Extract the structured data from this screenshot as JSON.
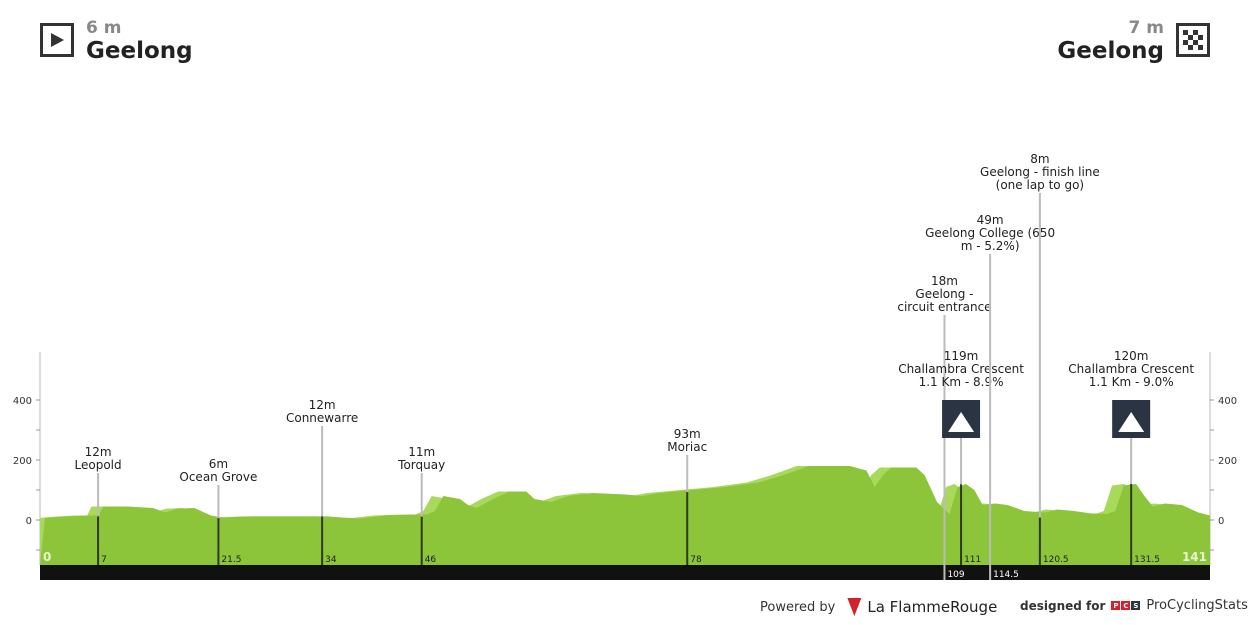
{
  "header": {
    "start": {
      "altitude": "6 m",
      "name": "Geelong",
      "icon": "play-start-icon"
    },
    "finish": {
      "altitude": "7 m",
      "name": "Geelong",
      "icon": "checkered-flag-icon"
    }
  },
  "chart_data": {
    "type": "area",
    "xlim": [
      0,
      141
    ],
    "ylim": [
      -150,
      560
    ],
    "yticks": [
      0,
      200,
      400
    ],
    "start_km_label": "0",
    "end_km_label": "141",
    "colors": {
      "profile": "#8cc43a",
      "profile_light": "#a8d95a",
      "bar": "#111111",
      "marker": "#bbbbbb",
      "kom_badge": "#2b3442"
    },
    "profile": [
      [
        0,
        7
      ],
      [
        3,
        12
      ],
      [
        5,
        15
      ],
      [
        6.5,
        15
      ],
      [
        7,
        45
      ],
      [
        10,
        45
      ],
      [
        13,
        40
      ],
      [
        14.5,
        25
      ],
      [
        16,
        38
      ],
      [
        18,
        40
      ],
      [
        20,
        15
      ],
      [
        21.5,
        8
      ],
      [
        25,
        12
      ],
      [
        30,
        12
      ],
      [
        34,
        12
      ],
      [
        36,
        8
      ],
      [
        38,
        5
      ],
      [
        41,
        15
      ],
      [
        44,
        18
      ],
      [
        46,
        18
      ],
      [
        47,
        30
      ],
      [
        48,
        80
      ],
      [
        50,
        70
      ],
      [
        51,
        50
      ],
      [
        52,
        40
      ],
      [
        54,
        70
      ],
      [
        56,
        95
      ],
      [
        58,
        95
      ],
      [
        59,
        70
      ],
      [
        61,
        60
      ],
      [
        63,
        80
      ],
      [
        66,
        90
      ],
      [
        70,
        85
      ],
      [
        72,
        80
      ],
      [
        74,
        90
      ],
      [
        76,
        95
      ],
      [
        78,
        100
      ],
      [
        82,
        110
      ],
      [
        86,
        125
      ],
      [
        89,
        150
      ],
      [
        92,
        180
      ],
      [
        97,
        180
      ],
      [
        99,
        165
      ],
      [
        100,
        110
      ],
      [
        101,
        150
      ],
      [
        102,
        175
      ],
      [
        105,
        175
      ],
      [
        106,
        150
      ],
      [
        107.5,
        60
      ],
      [
        109,
        20
      ],
      [
        110,
        110
      ],
      [
        111,
        120
      ],
      [
        112,
        100
      ],
      [
        113,
        50
      ],
      [
        114.5,
        55
      ],
      [
        116,
        50
      ],
      [
        118,
        30
      ],
      [
        120.5,
        25
      ],
      [
        122,
        35
      ],
      [
        124,
        30
      ],
      [
        126,
        22
      ],
      [
        128,
        20
      ],
      [
        129,
        30
      ],
      [
        130,
        115
      ],
      [
        131.5,
        120
      ],
      [
        132.5,
        80
      ],
      [
        133.5,
        45
      ],
      [
        135,
        55
      ],
      [
        137,
        50
      ],
      [
        139,
        25
      ],
      [
        141,
        15
      ]
    ],
    "markers": [
      {
        "km": "7",
        "lines": [
          "12m",
          "Leopold"
        ],
        "elev": 12,
        "label_top": 445,
        "in_bar": false,
        "kom": false
      },
      {
        "km": "21.5",
        "lines": [
          "6m",
          "Ocean Grove"
        ],
        "elev": 6,
        "label_top": 457,
        "in_bar": false,
        "kom": false
      },
      {
        "km": "34",
        "lines": [
          "12m",
          "Connewarre"
        ],
        "elev": 12,
        "label_top": 398,
        "in_bar": false,
        "kom": false
      },
      {
        "km": "46",
        "lines": [
          "11m",
          "Torquay"
        ],
        "elev": 11,
        "label_top": 445,
        "in_bar": false,
        "kom": false
      },
      {
        "km": "78",
        "lines": [
          "93m",
          "Moriac"
        ],
        "elev": 93,
        "label_top": 427,
        "in_bar": false,
        "kom": false
      },
      {
        "km": "109",
        "lines": [
          "18m",
          "Geelong -",
          "circuit entrance"
        ],
        "elev": 18,
        "label_top": 274,
        "in_bar": true,
        "kom": false
      },
      {
        "km": "111",
        "lines": [
          "119m",
          "Challambra Crescent",
          "1.1 Km - 8.9%"
        ],
        "elev": 119,
        "label_top": 349,
        "in_bar": false,
        "kom": true
      },
      {
        "km": "114.5",
        "lines": [
          "49m",
          "Geelong College (650",
          "m - 5.2%)"
        ],
        "elev": 49,
        "label_top": 213,
        "in_bar": true,
        "kom": false
      },
      {
        "km": "120.5",
        "lines": [
          "8m",
          "Geelong - finish line",
          "(one lap to go)"
        ],
        "elev": 8,
        "label_top": 152,
        "in_bar": false,
        "kom": false
      },
      {
        "km": "131.5",
        "lines": [
          "120m",
          "Challambra Crescent",
          "1.1 Km - 9.0%"
        ],
        "elev": 120,
        "label_top": 349,
        "in_bar": false,
        "kom": true
      }
    ]
  },
  "footer": {
    "powered_by": "Powered by",
    "brand": "La FlammeRouge",
    "designed_for": "designed for",
    "pcs_letters": [
      "P",
      "C",
      "S"
    ],
    "pcs_name": "ProCyclingStats"
  }
}
